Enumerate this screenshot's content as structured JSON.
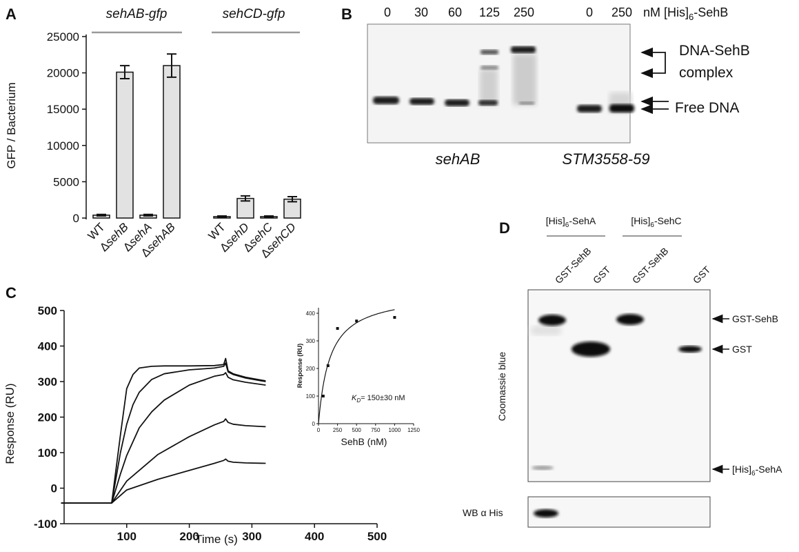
{
  "panel_a": {
    "label": "A",
    "groups": [
      "sehAB-gfp",
      "sehCD-gfp"
    ],
    "chart_data": {
      "type": "bar",
      "categories": [
        "WT",
        "ΔsehB",
        "ΔsehA",
        "ΔsehAB",
        "WT",
        "ΔsehD",
        "ΔsehC",
        "ΔsehCD"
      ],
      "values": [
        400,
        20100,
        400,
        21000,
        200,
        2700,
        200,
        2600
      ],
      "errors": [
        100,
        900,
        100,
        1600,
        80,
        350,
        80,
        350
      ],
      "ylabel": "GFP / Bacterium",
      "ylim": [
        0,
        25000
      ],
      "yticks": [
        0,
        5000,
        10000,
        15000,
        20000,
        25000
      ],
      "category_labels": [
        {
          "prefix": "",
          "name": "WT"
        },
        {
          "prefix": "Δ",
          "name": "sehB"
        },
        {
          "prefix": "Δ",
          "name": "sehA"
        },
        {
          "prefix": "Δ",
          "name": "sehAB"
        },
        {
          "prefix": "",
          "name": "WT"
        },
        {
          "prefix": "Δ",
          "name": "sehD"
        },
        {
          "prefix": "Δ",
          "name": "sehC"
        },
        {
          "prefix": "Δ",
          "name": "sehCD"
        }
      ],
      "bar_color": "#e2e2e2",
      "grid": false
    }
  },
  "panel_b": {
    "label": "B",
    "concentrations": [
      "0",
      "30",
      "60",
      "125",
      "250",
      "0",
      "250"
    ],
    "unit_prefix": "nM [His]",
    "unit_sub": "6",
    "unit_suffix": "-SehB",
    "complex_label_1": "DNA-SehB",
    "complex_label_2": "complex",
    "free_label": "Free DNA",
    "substrates": [
      "sehAB",
      "STM3558-59"
    ]
  },
  "panel_c": {
    "label": "C",
    "chart_data": {
      "type": "line",
      "xlabel": "Time (s)",
      "ylabel": "Response (RU)",
      "xlim": [
        0,
        500
      ],
      "ylim": [
        -100,
        500
      ],
      "xticks": [
        100,
        200,
        300,
        400,
        500
      ],
      "yticks": [
        -100,
        0,
        100,
        200,
        300,
        400,
        500
      ],
      "series": [
        {
          "x": [
            -5,
            76,
            90,
            100,
            110,
            120,
            140,
            160,
            200,
            240,
            255,
            258,
            262,
            270,
            290,
            322
          ],
          "y": [
            -42,
            -42,
            150,
            280,
            320,
            338,
            343,
            344,
            344,
            345,
            348,
            365,
            330,
            322,
            312,
            302
          ]
        },
        {
          "x": [
            -5,
            76,
            90,
            100,
            110,
            120,
            140,
            160,
            200,
            240,
            255,
            258,
            262,
            270,
            290,
            322
          ],
          "y": [
            -42,
            -42,
            100,
            180,
            235,
            270,
            306,
            322,
            333,
            338,
            343,
            352,
            327,
            320,
            310,
            300
          ]
        },
        {
          "x": [
            -5,
            76,
            90,
            100,
            120,
            140,
            160,
            200,
            240,
            255,
            258,
            262,
            270,
            290,
            322
          ],
          "y": [
            -42,
            -42,
            40,
            92,
            170,
            215,
            248,
            290,
            315,
            320,
            325,
            312,
            305,
            298,
            290
          ]
        },
        {
          "x": [
            -5,
            76,
            100,
            150,
            200,
            240,
            255,
            258,
            262,
            270,
            290,
            322
          ],
          "y": [
            -42,
            -42,
            20,
            95,
            145,
            178,
            188,
            195,
            185,
            180,
            176,
            173
          ]
        },
        {
          "x": [
            -5,
            76,
            100,
            150,
            200,
            240,
            255,
            258,
            262,
            270,
            290,
            322
          ],
          "y": [
            -42,
            -42,
            -5,
            25,
            50,
            70,
            78,
            82,
            76,
            73,
            71,
            70
          ]
        }
      ],
      "grid": false,
      "inset": {
        "type": "scatter",
        "xlabel": "SehB (nM)",
        "ylabel": "Response (RU)",
        "xlim": [
          0,
          1250
        ],
        "ylim": [
          0,
          420
        ],
        "xticks": [
          0,
          250,
          500,
          750,
          1000,
          1250
        ],
        "yticks": [
          0,
          100,
          200,
          300,
          400
        ],
        "points": [
          [
            62,
            100
          ],
          [
            125,
            210
          ],
          [
            250,
            345
          ],
          [
            500,
            372
          ],
          [
            1000,
            385
          ]
        ],
        "fit": {
          "bmax": 475,
          "kd": 150
        },
        "annotation_k": "K",
        "annotation_sub": "D",
        "annotation_rest": "= 150±30 nM"
      }
    }
  },
  "panel_d": {
    "label": "D",
    "groups": [
      {
        "prefix": "[His]",
        "sub": "6",
        "suffix": "-SehA"
      },
      {
        "prefix": "[His]",
        "sub": "6",
        "suffix": "-SehC"
      }
    ],
    "lanes": [
      "GST-SehB",
      "GST",
      "GST-SehB",
      "GST"
    ],
    "side_label": "Coomassie blue",
    "bands": [
      {
        "prefix": "GST-SehB",
        "sub": "",
        "suffix": ""
      },
      {
        "prefix": "GST",
        "sub": "",
        "suffix": ""
      },
      {
        "prefix": "[His]",
        "sub": "6",
        "suffix": "-SehA"
      }
    ],
    "wb_label": "WB α His"
  }
}
